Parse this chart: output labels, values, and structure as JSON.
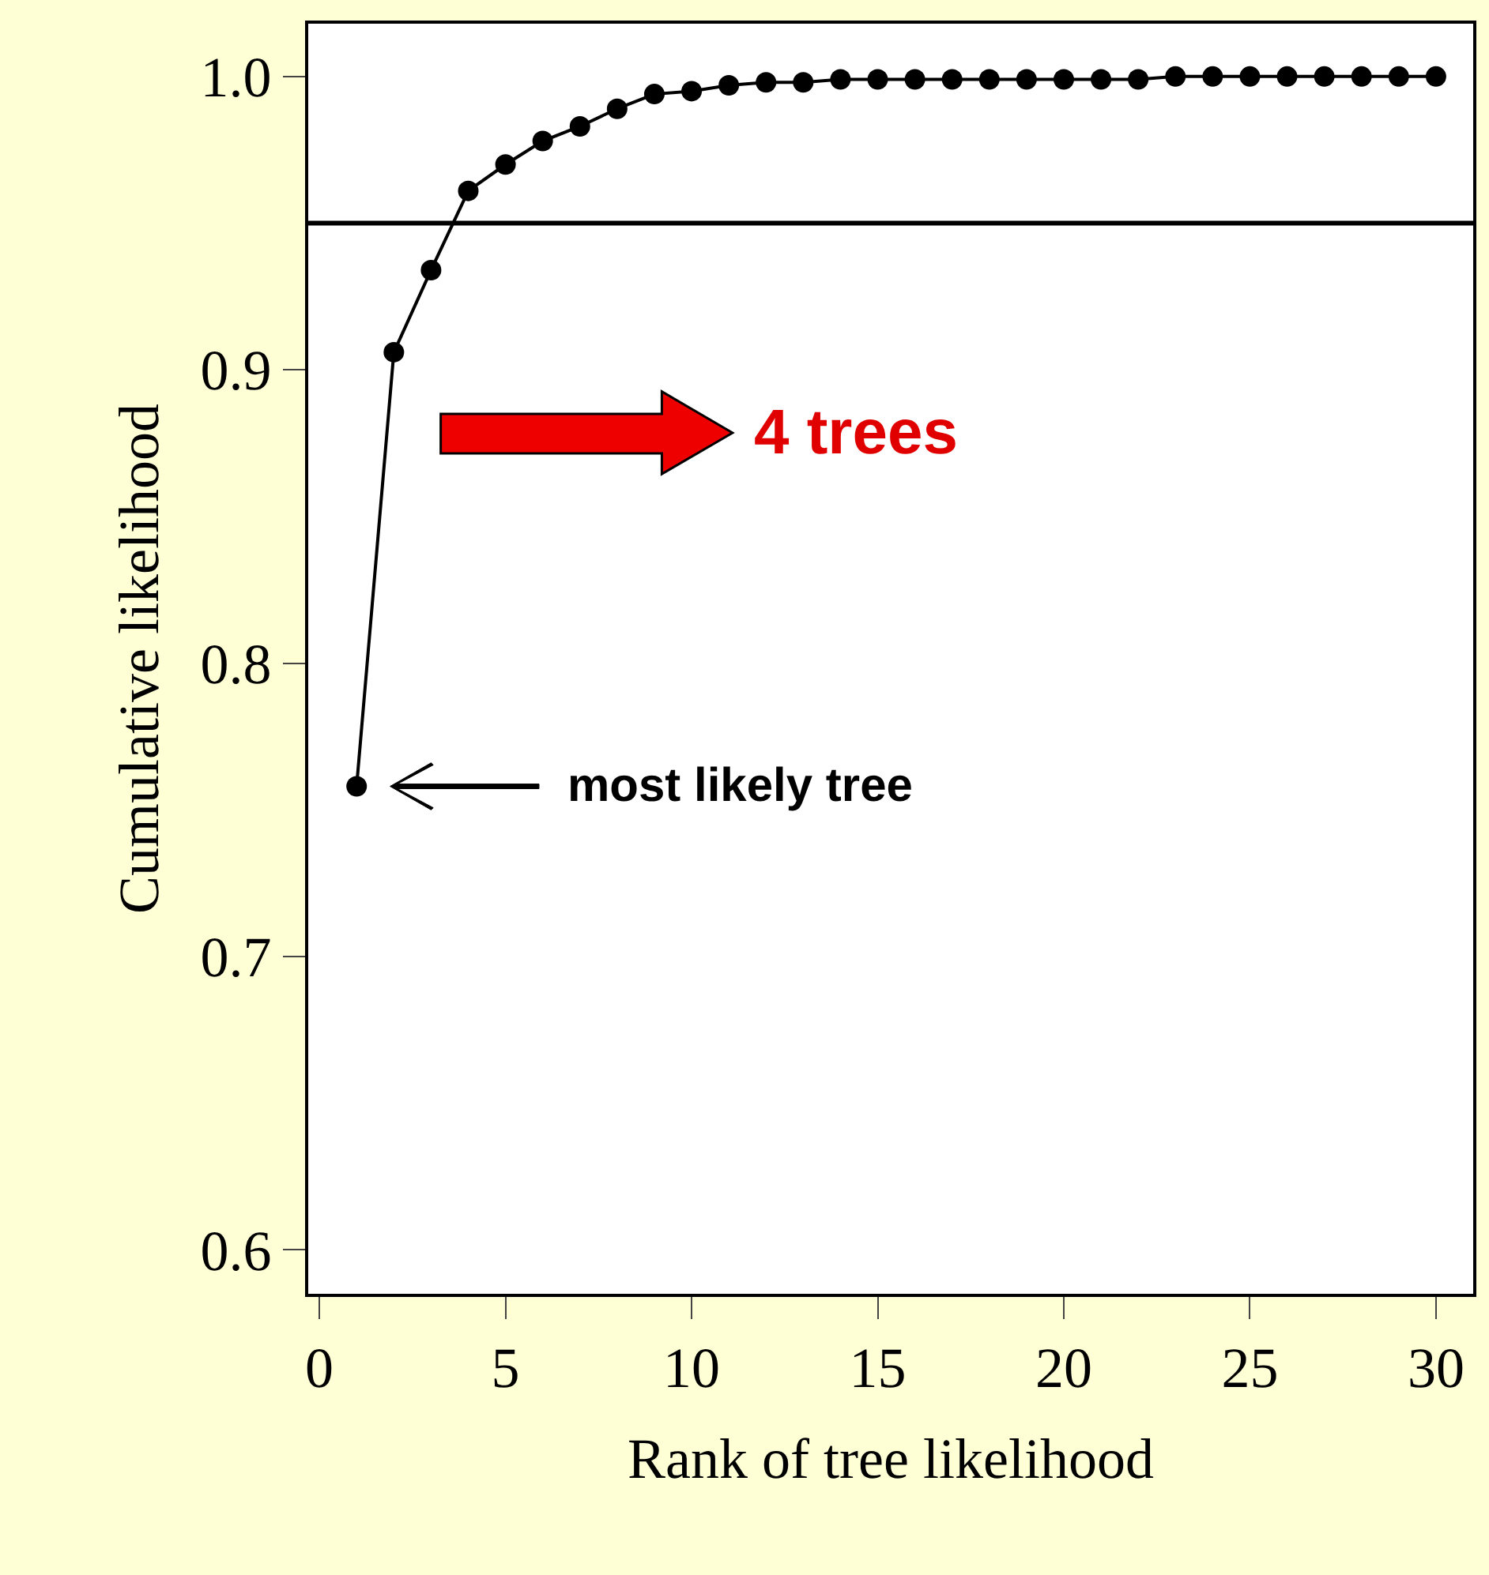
{
  "chart_data": {
    "type": "line",
    "xlabel": "Rank of tree likelihood",
    "ylabel": "Cumulative likelihood",
    "x": [
      1,
      2,
      3,
      4,
      5,
      6,
      7,
      8,
      9,
      10,
      11,
      12,
      13,
      14,
      15,
      16,
      17,
      18,
      19,
      20,
      21,
      22,
      23,
      24,
      25,
      26,
      27,
      28,
      29,
      30
    ],
    "series": [
      {
        "color": "#000000",
        "values": [
          0.758,
          0.906,
          0.934,
          0.961,
          0.97,
          0.978,
          0.983,
          0.989,
          0.994,
          0.995,
          0.997,
          0.998,
          0.998,
          0.999,
          0.999,
          0.999,
          0.999,
          0.999,
          0.999,
          0.999,
          0.999,
          0.999,
          1.0,
          1.0,
          1.0,
          1.0,
          1.0,
          1.0,
          1.0,
          1.0
        ]
      }
    ],
    "marker": "circle",
    "line_style": "solid",
    "grid": false,
    "xlim": [
      -0.3,
      31
    ],
    "xticks": [
      0,
      5,
      10,
      15,
      20,
      25,
      30
    ],
    "ylim": [
      0.585,
      1.018
    ],
    "yticks": [
      {
        "value": 0.6,
        "label": "0.6"
      },
      {
        "value": 0.7,
        "label": "0.7"
      },
      {
        "value": 0.8,
        "label": "0.8"
      },
      {
        "value": 0.9,
        "label": "0.9"
      },
      {
        "value": 1.0,
        "label": "1.0"
      }
    ],
    "ref_lines": [
      {
        "axis": "y",
        "value": 0.95,
        "label": null,
        "color": "#000000"
      }
    ],
    "annotations": [
      "most likely tree",
      "4 trees"
    ]
  }
}
